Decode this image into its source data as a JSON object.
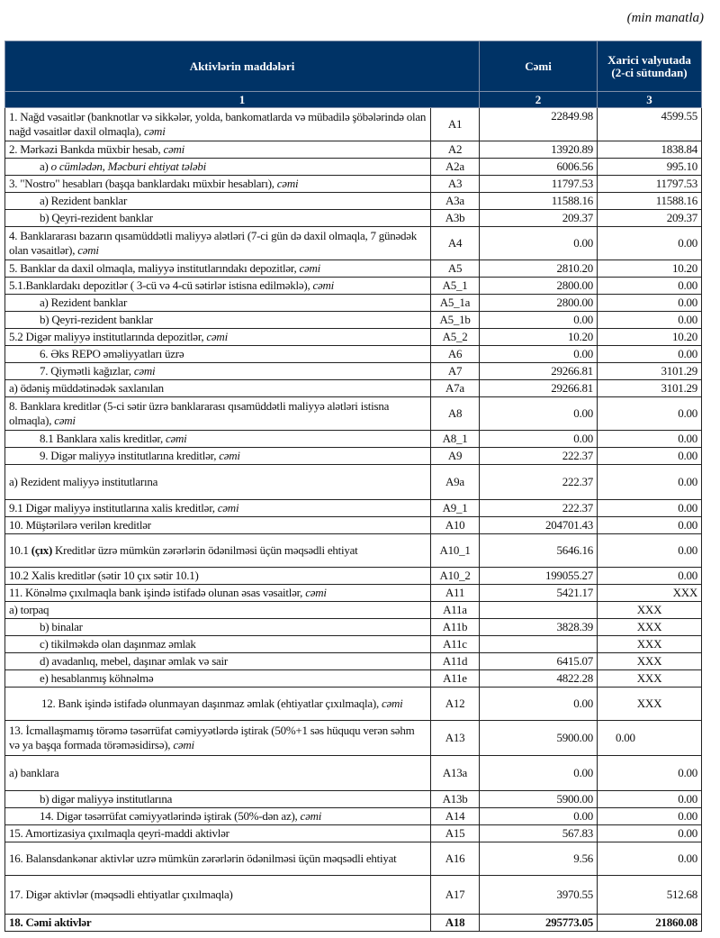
{
  "unit": "(min manatla)",
  "header": {
    "col1": "Aktivlərin   maddələri",
    "col3": "Cəmi",
    "col4": "Xarici valyutada (2-ci sütundan)",
    "num1": "1",
    "num2": "2",
    "num3": "3"
  },
  "rows": [
    {
      "code": "A1",
      "total": "22849.98",
      "fx": "4599.55",
      "label": [
        {
          "t": "1. Nağd vəsaitlər (banknotlar və sikkələr, yolda, bankomatlarda və mübadilə şöbələrində olan nağd vəsaitlər daxil olmaqla), "
        },
        {
          "t": "cəmi",
          "i": true
        }
      ]
    },
    {
      "code": "A2",
      "total": "13920.89",
      "fx": "1838.84",
      "label": [
        {
          "t": "2. Mərkəzi Bankda müxbir hesab, "
        },
        {
          "t": "cəmi",
          "i": true
        }
      ]
    },
    {
      "code": "A2a",
      "total": "6006.56",
      "fx": "995.10",
      "label": [
        {
          "t": "a) "
        },
        {
          "t": "o cümlədən, Məcburi ehtiyat tələbi",
          "i": true
        }
      ]
    },
    {
      "code": "A3",
      "total": "11797.53",
      "fx": "11797.53",
      "label": [
        {
          "t": "3. \"Nostro\" hesabları (başqa banklardakı müxbir hesabları), "
        },
        {
          "t": "cəmi",
          "i": true
        }
      ]
    },
    {
      "code": "A3a",
      "total": "11588.16",
      "fx": "11588.16",
      "label": [
        {
          "t": "a) Rezident banklar"
        }
      ]
    },
    {
      "code": "A3b",
      "total": "209.37",
      "fx": "209.37",
      "label": [
        {
          "t": "b) Qeyri-rezident banklar"
        }
      ]
    },
    {
      "code": "A4",
      "total": "0.00",
      "fx": "0.00",
      "label": [
        {
          "t": "4. Banklararası bazarın qısamüddətli maliyyə alətləri (7-ci gün də daxil olmaqla, 7 günədək olan vəsaitlər), "
        },
        {
          "t": "cəmi",
          "i": true
        }
      ]
    },
    {
      "code": "A5",
      "total": "2810.20",
      "fx": "10.20",
      "label": [
        {
          "t": "5. Banklar da daxil olmaqla, maliyyə institutlarındakı depozitlər, "
        },
        {
          "t": "cəmi",
          "i": true
        }
      ]
    },
    {
      "code": "A5_1",
      "total": "2800.00",
      "fx": "0.00",
      "label": [
        {
          "t": "5.1.Banklardakı depozitlər ( 3-cü və 4-cü sətirlər istisna edilməklə), "
        },
        {
          "t": "cəmi",
          "i": true
        }
      ]
    },
    {
      "code": "A5_1a",
      "total": "2800.00",
      "fx": "0.00",
      "label": [
        {
          "t": "a) Rezident banklar"
        }
      ]
    },
    {
      "code": "A5_1b",
      "total": "0.00",
      "fx": "0.00",
      "label": [
        {
          "t": "b) Qeyri-rezident banklar"
        }
      ]
    },
    {
      "code": "A5_2",
      "total": "10.20",
      "fx": "10.20",
      "label": [
        {
          "t": "5.2 Digər maliyyə institutlarında depozitlər, "
        },
        {
          "t": "cəmi",
          "i": true
        }
      ]
    },
    {
      "code": "A6",
      "total": "0.00",
      "fx": "0.00",
      "label": [
        {
          "t": "6. Əks REPO əməliyyatları üzrə"
        }
      ]
    },
    {
      "code": "A7",
      "total": "29266.81",
      "fx": "3101.29",
      "label": [
        {
          "t": "7. Qiymətli kağızlar, "
        },
        {
          "t": "cəmi",
          "i": true
        }
      ]
    },
    {
      "code": "A7a",
      "total": "29266.81",
      "fx": "3101.29",
      "label": [
        {
          "t": "a) ödəniş müddətinədək saxlanılan"
        }
      ]
    },
    {
      "code": "A8",
      "total": "0.00",
      "fx": "0.00",
      "label": [
        {
          "t": "8. Banklara kreditlər (5-ci sətir üzrə banklararası qısamüddətli maliyyə alətləri istisna olmaqla), "
        },
        {
          "t": "cəmi",
          "i": true
        }
      ]
    },
    {
      "code": "A8_1",
      "total": "0.00",
      "fx": "0.00",
      "label": [
        {
          "t": "8.1 Banklara xalis kreditlər, "
        },
        {
          "t": "cəmi",
          "i": true
        }
      ]
    },
    {
      "code": "A9",
      "total": "222.37",
      "fx": "0.00",
      "label": [
        {
          "t": "9. Digər maliyyə institutlarına kreditlər, "
        },
        {
          "t": "cəmi",
          "i": true
        }
      ]
    },
    {
      "code": "A9a",
      "total": "222.37",
      "fx": "0.00",
      "label": [
        {
          "t": "a) Rezident maliyyə institutlarına"
        }
      ]
    },
    {
      "code": "A9_1",
      "total": "222.37",
      "fx": "0.00",
      "label": [
        {
          "t": "9.1 Digər maliyyə institutlarına xalis kreditlər, "
        },
        {
          "t": "cəmi",
          "i": true
        }
      ]
    },
    {
      "code": "A10",
      "total": "204701.43",
      "fx": "0.00",
      "label": [
        {
          "t": "10. Müştərilərə verilən kreditlər"
        }
      ]
    },
    {
      "code": "A10_1",
      "total": "5646.16",
      "fx": "0.00",
      "label": [
        {
          "t": "10.1 "
        },
        {
          "t": "(çıx)",
          "b": true
        },
        {
          "t": " Kreditlər üzrə mümkün zərərlərin ödənilməsi üçün məqsədli ehtiyat"
        }
      ]
    },
    {
      "code": "A10_2",
      "total": "199055.27",
      "fx": "0.00",
      "label": [
        {
          "t": "10.2 Xalis kreditlər (sətir 10 çıx sətir 10.1)"
        }
      ]
    },
    {
      "code": "A11",
      "total": "5421.17",
      "fx": "XXX",
      "label": [
        {
          "t": "11. Könəlmə çıxılmaqla bank işində istifadə olunan əsas vəsaitlər, "
        },
        {
          "t": "cəmi",
          "i": true
        }
      ]
    },
    {
      "code": "A11a",
      "total": "",
      "fx": "XXX",
      "label": [
        {
          "t": "a) torpaq"
        }
      ]
    },
    {
      "code": "A11b",
      "total": "3828.39",
      "fx": "XXX",
      "label": [
        {
          "t": "b) binalar"
        }
      ]
    },
    {
      "code": "A11c",
      "total": "",
      "fx": "XXX",
      "label": [
        {
          "t": "c) tikilməkdə olan daşınmaz əmlak"
        }
      ]
    },
    {
      "code": "A11d",
      "total": "6415.07",
      "fx": "XXX",
      "label": [
        {
          "t": "d) avadanlıq, mebel, daşınar əmlak və sair"
        }
      ]
    },
    {
      "code": "A11e",
      "total": "4822.28",
      "fx": "XXX",
      "label": [
        {
          "t": "e) hesablanmış köhnəlmə"
        }
      ]
    },
    {
      "code": "A12",
      "total": "0.00",
      "fx": "XXX",
      "label": [
        {
          "t": "12. Bank işində istifadə olunmayan daşınmaz əmlak (ehtiyatlar çıxılmaqla), "
        },
        {
          "t": "cəmi",
          "i": true
        }
      ]
    },
    {
      "code": "A13",
      "total": "5900.00",
      "fx": "0.00",
      "label": [
        {
          "t": "13. İcmallaşmamış törəmə təsərrüfat cəmiyyətlərdə iştirak (50%+1 səs hüququ verən səhm və ya başqa formada törəməsidirsə), "
        },
        {
          "t": "cəmi",
          "i": true
        }
      ]
    },
    {
      "code": "A13a",
      "total": "0.00",
      "fx": "0.00",
      "label": [
        {
          "t": "a) banklara"
        }
      ]
    },
    {
      "code": "A13b",
      "total": "5900.00",
      "fx": "0.00",
      "label": [
        {
          "t": "b) digər maliyyə institutlarına"
        }
      ]
    },
    {
      "code": "A14",
      "total": "0.00",
      "fx": "0.00",
      "label": [
        {
          "t": "14. Digər təsərrüfat cəmiyyətlərində iştirak (50%-dən az), "
        },
        {
          "t": "cəmi",
          "i": true
        }
      ]
    },
    {
      "code": "A15",
      "total": "567.83",
      "fx": "0.00",
      "label": [
        {
          "t": "15. Amortizasiya çıxılmaqla qeyri-maddi aktivlər"
        }
      ]
    },
    {
      "code": "A16",
      "total": "9.56",
      "fx": "0.00",
      "label": [
        {
          "t": "16. Balansdankənar aktivlər uzrə mümkün zərərlərin ödənilməsi üçün məqsədli ehtiyat"
        }
      ]
    },
    {
      "code": "A17",
      "total": "3970.55",
      "fx": "512.68",
      "label": [
        {
          "t": "17. Digər aktivlər (məqsədli ehtiyatlar çıxılmaqla)"
        }
      ]
    },
    {
      "code": "A18",
      "total": "295773.05",
      "fx": "21860.08",
      "label": [
        {
          "t": "18. Cəmi aktivlər"
        }
      ]
    }
  ]
}
